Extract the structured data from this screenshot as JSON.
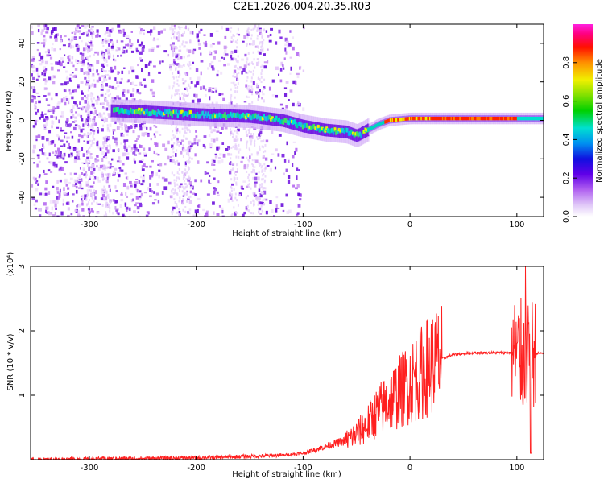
{
  "figure": {
    "title": "C2E1.2026.004.20.35.R03"
  },
  "chart_data": [
    {
      "type": "heatmap",
      "title": "C2E1.2026.004.20.35.R03",
      "xlabel": "Height of straight line (km)",
      "ylabel": "Frequency (Hz)",
      "xlim": [
        -355,
        125
      ],
      "ylim": [
        -50,
        50
      ],
      "x_ticks": [
        -300,
        -200,
        -100,
        0,
        100
      ],
      "y_ticks": [
        -40,
        -20,
        0,
        20,
        40
      ],
      "colorbar": {
        "label": "Normalized spectral amplitude",
        "range": [
          0,
          1
        ],
        "ticks": [
          0.0,
          0.2,
          0.4,
          0.6,
          0.8
        ]
      },
      "ridge": {
        "description_points_x_km": [
          -280,
          -250,
          -200,
          -150,
          -120,
          -100,
          -80,
          -60,
          -50,
          -40,
          -30,
          -20,
          0,
          50,
          100,
          125
        ],
        "frequency_hz": [
          5,
          4.5,
          3,
          2,
          0,
          -3,
          -5,
          -6,
          -8,
          -5,
          -2,
          0,
          1,
          1,
          1,
          1
        ]
      }
    },
    {
      "type": "line",
      "xlabel": "Height of straight line (km)",
      "ylabel": "SNR (10 * v/v)",
      "y_multiplier": "(x10⁴)",
      "xlim": [
        -355,
        125
      ],
      "ylim": [
        0,
        3
      ],
      "x_ticks": [
        -300,
        -200,
        -100,
        0,
        100
      ],
      "y_ticks": [
        1,
        2,
        3
      ],
      "series": [
        {
          "name": "SNR",
          "color": "#ff2020",
          "x": [
            -355,
            -250,
            -200,
            -150,
            -120,
            -100,
            -80,
            -60,
            -50,
            -40,
            -30,
            -20,
            -10,
            0,
            20,
            40,
            60,
            80,
            100,
            105,
            110,
            112,
            115,
            125
          ],
          "y": [
            0.0,
            0.02,
            0.03,
            0.05,
            0.07,
            0.1,
            0.2,
            0.3,
            0.4,
            0.55,
            0.75,
            0.9,
            1.05,
            1.2,
            1.5,
            1.63,
            1.66,
            1.66,
            1.66,
            1.6,
            1.5,
            1.6,
            1.65,
            1.65
          ]
        }
      ]
    }
  ]
}
